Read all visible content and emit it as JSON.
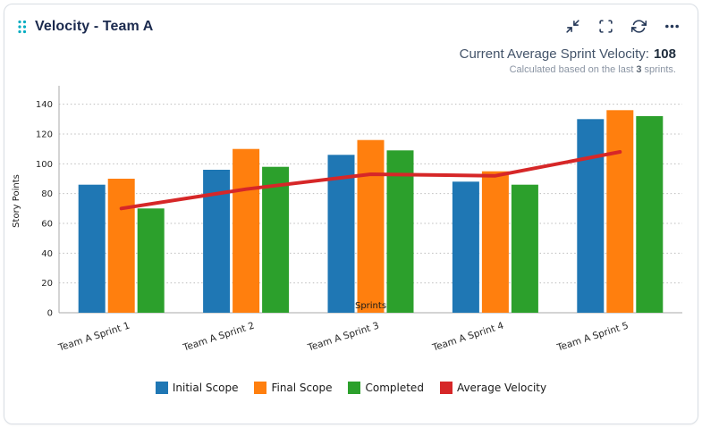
{
  "widget": {
    "title": "Velocity - Team A",
    "accent_color": "#00acc1",
    "icon_color": "#243757",
    "toolbar": {
      "collapse": "collapse",
      "fullscreen": "fullscreen",
      "refresh": "refresh",
      "more": "more options"
    }
  },
  "summary": {
    "label": "Current Average Sprint Velocity:",
    "value": "108",
    "sub_prefix": "Calculated based on the last",
    "sub_bold": "3",
    "sub_suffix": "sprints."
  },
  "chart_data": {
    "type": "bar",
    "title": "",
    "categories": [
      "Team A Sprint 1",
      "Team A Sprint 2",
      "Team A Sprint 3",
      "Team A Sprint 4",
      "Team A Sprint 5"
    ],
    "series": [
      {
        "name": "Initial Scope",
        "type": "bar",
        "color": "#1f77b4",
        "values": [
          86,
          96,
          106,
          88,
          130
        ]
      },
      {
        "name": "Final Scope",
        "type": "bar",
        "color": "#ff7f0e",
        "values": [
          90,
          110,
          116,
          95,
          136
        ]
      },
      {
        "name": "Completed",
        "type": "bar",
        "color": "#2ca02c",
        "values": [
          70,
          98,
          109,
          86,
          132
        ]
      },
      {
        "name": "Average Velocity",
        "type": "line",
        "color": "#d62728",
        "values": [
          70,
          83,
          93,
          92,
          108
        ]
      }
    ],
    "xlabel": "Sprints",
    "ylabel": "Story Points",
    "ylim": [
      0,
      140
    ],
    "yticks": [
      0,
      20,
      40,
      60,
      80,
      100,
      120,
      140
    ],
    "grid": true,
    "grid_style": "dotted",
    "legend_position": "bottom"
  }
}
